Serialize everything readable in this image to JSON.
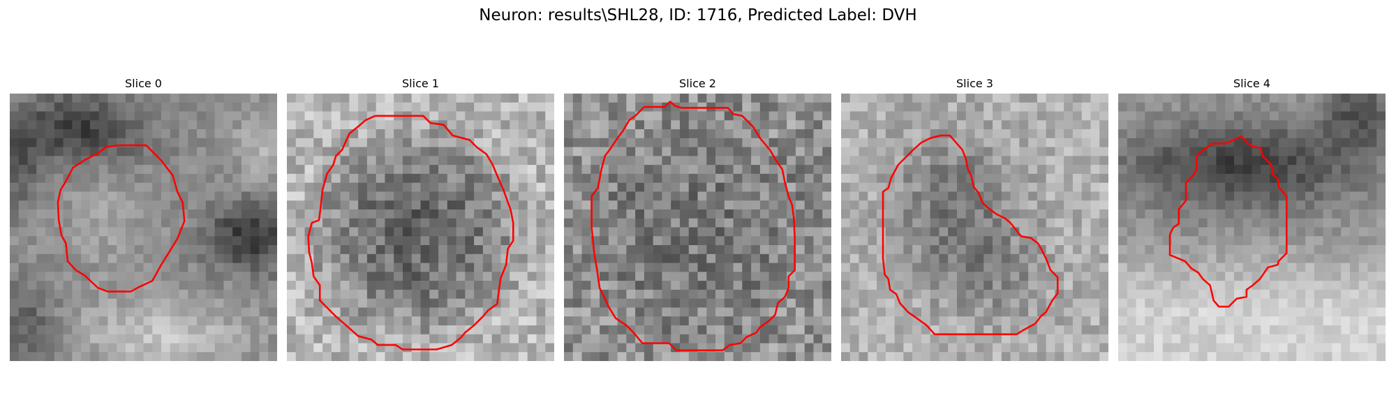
{
  "figure": {
    "title": "Neuron: results\\SHL28, ID: 1716, Predicted Label: DVH",
    "contour_color": "#ff0000",
    "colormap": "gray"
  },
  "slices": [
    {
      "title": "Slice 0",
      "texture": "dark upper-left and right band, bright lower region",
      "contour": [
        [
          12.2,
          5.8
        ],
        [
          15.3,
          5.8
        ],
        [
          16.3,
          6.8
        ],
        [
          17.0,
          7.5
        ],
        [
          18.3,
          9.2
        ],
        [
          18.8,
          11.0
        ],
        [
          19.4,
          12.2
        ],
        [
          19.6,
          14.3
        ],
        [
          18.8,
          16.3
        ],
        [
          18.0,
          17.6
        ],
        [
          17.0,
          19.2
        ],
        [
          16.0,
          21.0
        ],
        [
          14.5,
          21.7
        ],
        [
          13.6,
          22.2
        ],
        [
          11.0,
          22.2
        ],
        [
          9.9,
          21.8
        ],
        [
          8.4,
          20.4
        ],
        [
          7.4,
          19.8
        ],
        [
          6.5,
          18.8
        ],
        [
          6.3,
          16.8
        ],
        [
          5.8,
          15.9
        ],
        [
          5.5,
          14.2
        ],
        [
          5.4,
          12.2
        ],
        [
          5.7,
          10.8
        ],
        [
          6.2,
          10.0
        ],
        [
          7.1,
          8.3
        ],
        [
          8.5,
          7.4
        ],
        [
          9.9,
          6.7
        ],
        [
          10.8,
          6.0
        ],
        [
          12.2,
          5.8
        ]
      ]
    },
    {
      "title": "Slice 1",
      "texture": "bright border, dark center",
      "contour": [
        [
          9.9,
          2.5
        ],
        [
          15.3,
          2.5
        ],
        [
          16.1,
          3.3
        ],
        [
          17.6,
          3.5
        ],
        [
          18.6,
          4.7
        ],
        [
          20.5,
          5.2
        ],
        [
          21.3,
          6.0
        ],
        [
          22.4,
          6.8
        ],
        [
          23.1,
          8.0
        ],
        [
          23.6,
          9.2
        ],
        [
          24.3,
          10.8
        ],
        [
          24.8,
          12.2
        ],
        [
          25.1,
          13.0
        ],
        [
          25.4,
          14.5
        ],
        [
          25.4,
          16.5
        ],
        [
          24.8,
          17.4
        ],
        [
          24.6,
          19.2
        ],
        [
          24.0,
          20.7
        ],
        [
          23.8,
          22.0
        ],
        [
          23.6,
          23.6
        ],
        [
          22.6,
          24.3
        ],
        [
          22.0,
          25.0
        ],
        [
          21.0,
          26.0
        ],
        [
          20.0,
          26.8
        ],
        [
          19.5,
          27.4
        ],
        [
          18.5,
          28.2
        ],
        [
          16.8,
          28.7
        ],
        [
          13.0,
          28.7
        ],
        [
          12.2,
          28.2
        ],
        [
          10.2,
          28.2
        ],
        [
          9.5,
          27.6
        ],
        [
          8.0,
          27.2
        ],
        [
          7.0,
          26.3
        ],
        [
          5.5,
          25.0
        ],
        [
          4.5,
          24.0
        ],
        [
          3.7,
          23.2
        ],
        [
          3.7,
          21.5
        ],
        [
          3.0,
          20.5
        ],
        [
          2.8,
          19.0
        ],
        [
          2.5,
          17.8
        ],
        [
          2.4,
          16.0
        ],
        [
          2.8,
          14.5
        ],
        [
          3.6,
          14.2
        ],
        [
          3.8,
          12.7
        ],
        [
          4.0,
          10.8
        ],
        [
          4.5,
          9.0
        ],
        [
          5.2,
          8.0
        ],
        [
          5.5,
          7.0
        ],
        [
          6.2,
          6.3
        ],
        [
          7.0,
          4.5
        ],
        [
          8.0,
          3.7
        ],
        [
          8.8,
          3.0
        ],
        [
          9.9,
          2.5
        ]
      ]
    },
    {
      "title": "Slice 2",
      "texture": "uniform mid-gray noise",
      "contour": [
        [
          9.0,
          1.5
        ],
        [
          11.3,
          1.5
        ],
        [
          11.9,
          0.9
        ],
        [
          12.5,
          1.4
        ],
        [
          13.2,
          1.6
        ],
        [
          18.4,
          1.6
        ],
        [
          19.0,
          2.3
        ],
        [
          20.0,
          2.5
        ],
        [
          21.2,
          3.7
        ],
        [
          22.0,
          5.0
        ],
        [
          23.1,
          6.3
        ],
        [
          23.8,
          7.5
        ],
        [
          24.5,
          8.5
        ],
        [
          24.8,
          10.0
        ],
        [
          25.2,
          11.5
        ],
        [
          25.6,
          12.5
        ],
        [
          25.8,
          14.0
        ],
        [
          25.9,
          16.2
        ],
        [
          25.9,
          19.8
        ],
        [
          25.2,
          20.5
        ],
        [
          25.2,
          21.8
        ],
        [
          24.8,
          22.8
        ],
        [
          24.0,
          23.5
        ],
        [
          23.7,
          24.8
        ],
        [
          23.0,
          25.5
        ],
        [
          22.0,
          26.2
        ],
        [
          21.6,
          26.8
        ],
        [
          20.5,
          27.3
        ],
        [
          19.8,
          28.0
        ],
        [
          18.6,
          28.2
        ],
        [
          17.8,
          28.8
        ],
        [
          12.6,
          28.8
        ],
        [
          11.8,
          28.0
        ],
        [
          8.8,
          28.0
        ],
        [
          7.8,
          26.8
        ],
        [
          7.0,
          26.0
        ],
        [
          5.8,
          25.2
        ],
        [
          5.0,
          23.9
        ],
        [
          4.5,
          22.8
        ],
        [
          4.0,
          21.8
        ],
        [
          3.7,
          19.7
        ],
        [
          3.4,
          18.0
        ],
        [
          3.1,
          15.0
        ],
        [
          3.1,
          11.5
        ],
        [
          3.8,
          10.6
        ],
        [
          4.2,
          8.5
        ],
        [
          4.6,
          7.0
        ],
        [
          5.2,
          6.2
        ],
        [
          6.0,
          5.0
        ],
        [
          6.6,
          4.2
        ],
        [
          7.3,
          3.0
        ],
        [
          8.0,
          2.5
        ],
        [
          9.0,
          1.5
        ]
      ]
    },
    {
      "title": "Slice 3",
      "texture": "bright light-gray with dark center",
      "contour": [
        [
          11.2,
          4.7
        ],
        [
          12.2,
          4.7
        ],
        [
          12.9,
          5.5
        ],
        [
          13.6,
          6.3
        ],
        [
          14.0,
          7.3
        ],
        [
          14.2,
          8.4
        ],
        [
          14.6,
          9.2
        ],
        [
          14.9,
          10.5
        ],
        [
          15.4,
          11.1
        ],
        [
          15.9,
          12.3
        ],
        [
          16.6,
          12.9
        ],
        [
          17.4,
          13.5
        ],
        [
          18.4,
          14.0
        ],
        [
          19.0,
          14.5
        ],
        [
          20.2,
          16.0
        ],
        [
          21.3,
          16.2
        ],
        [
          22.1,
          16.8
        ],
        [
          22.5,
          17.5
        ],
        [
          23.0,
          18.5
        ],
        [
          23.5,
          19.8
        ],
        [
          24.3,
          20.6
        ],
        [
          24.3,
          22.4
        ],
        [
          23.7,
          23.2
        ],
        [
          23.0,
          24.5
        ],
        [
          22.4,
          25.0
        ],
        [
          21.8,
          25.8
        ],
        [
          20.5,
          26.5
        ],
        [
          19.7,
          27.0
        ],
        [
          10.5,
          27.0
        ],
        [
          9.6,
          26.0
        ],
        [
          8.5,
          25.2
        ],
        [
          7.5,
          24.5
        ],
        [
          6.6,
          23.5
        ],
        [
          6.2,
          22.5
        ],
        [
          5.5,
          22.0
        ],
        [
          5.3,
          20.8
        ],
        [
          4.9,
          20.3
        ],
        [
          4.7,
          18.5
        ],
        [
          4.7,
          11.0
        ],
        [
          5.3,
          10.6
        ],
        [
          5.6,
          9.5
        ],
        [
          6.4,
          8.0
        ],
        [
          7.2,
          7.2
        ],
        [
          8.1,
          6.3
        ],
        [
          9.0,
          5.5
        ],
        [
          10.0,
          5.0
        ],
        [
          11.2,
          4.7
        ]
      ]
    },
    {
      "title": "Slice 4",
      "texture": "dark upper band, bright lower region",
      "contour": [
        [
          13.8,
          4.8
        ],
        [
          14.6,
          5.6
        ],
        [
          15.0,
          5.9
        ],
        [
          16.0,
          6.1
        ],
        [
          16.2,
          7.0
        ],
        [
          17.1,
          7.9
        ],
        [
          17.3,
          8.5
        ],
        [
          17.3,
          9.0
        ],
        [
          17.9,
          9.6
        ],
        [
          18.0,
          10.5
        ],
        [
          18.9,
          11.5
        ],
        [
          18.9,
          17.9
        ],
        [
          18.0,
          18.8
        ],
        [
          17.9,
          19.2
        ],
        [
          16.8,
          19.5
        ],
        [
          15.9,
          20.8
        ],
        [
          15.1,
          21.5
        ],
        [
          14.4,
          22.0
        ],
        [
          14.4,
          22.8
        ],
        [
          13.3,
          23.0
        ],
        [
          12.4,
          23.9
        ],
        [
          11.3,
          23.9
        ],
        [
          10.7,
          23.2
        ],
        [
          10.5,
          22.3
        ],
        [
          10.3,
          21.5
        ],
        [
          9.5,
          20.8
        ],
        [
          9.0,
          20.1
        ],
        [
          8.2,
          19.6
        ],
        [
          7.5,
          18.8
        ],
        [
          5.8,
          18.1
        ],
        [
          5.8,
          15.8
        ],
        [
          6.2,
          15.0
        ],
        [
          6.8,
          14.6
        ],
        [
          6.8,
          13.0
        ],
        [
          7.6,
          12.0
        ],
        [
          7.6,
          10.0
        ],
        [
          8.3,
          9.3
        ],
        [
          8.8,
          8.6
        ],
        [
          8.8,
          7.0
        ],
        [
          9.7,
          6.2
        ],
        [
          10.6,
          5.6
        ],
        [
          12.0,
          5.6
        ],
        [
          13.0,
          5.2
        ],
        [
          13.8,
          4.8
        ]
      ]
    }
  ]
}
